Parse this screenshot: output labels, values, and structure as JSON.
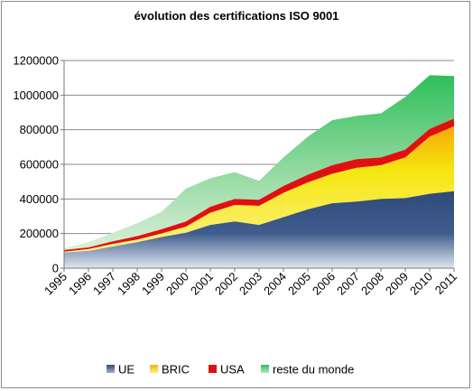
{
  "chart_data": {
    "type": "area",
    "title": "évolution des certifications ISO 9001",
    "xlabel": "",
    "ylabel": "",
    "ylim": [
      0,
      1200000
    ],
    "yticks": [
      0,
      200000,
      400000,
      600000,
      800000,
      1000000,
      1200000
    ],
    "ytick_labels": [
      "0",
      "200000",
      "400000",
      "600000",
      "800000",
      "1000000",
      "1200000"
    ],
    "grid": true,
    "legend_position": "bottom",
    "categories": [
      "1995",
      "1996",
      "1997",
      "1998",
      "1999",
      "2000",
      "2001",
      "2002",
      "2003",
      "2004",
      "2005",
      "2006",
      "2007",
      "2008",
      "2009",
      "2010",
      "2011"
    ],
    "stacked": true,
    "series": [
      {
        "name": "UE",
        "color": "#2f4f7f",
        "values": [
          90000,
          100000,
          125000,
          150000,
          180000,
          205000,
          250000,
          270000,
          250000,
          295000,
          340000,
          375000,
          385000,
          400000,
          405000,
          430000,
          445000
        ]
      },
      {
        "name": "BRIC",
        "color": "#f5e60a",
        "values": [
          5000,
          10000,
          15000,
          15000,
          20000,
          35000,
          70000,
          95000,
          110000,
          140000,
          155000,
          170000,
          195000,
          195000,
          235000,
          330000,
          375000
        ]
      },
      {
        "name": "USA",
        "color": "#e01010",
        "values": [
          10000,
          10000,
          15000,
          20000,
          25000,
          30000,
          35000,
          35000,
          35000,
          40000,
          45000,
          50000,
          50000,
          45000,
          45000,
          45000,
          45000
        ]
      },
      {
        "name": "reste du monde",
        "color": "#3cc070",
        "values": [
          10000,
          30000,
          50000,
          75000,
          100000,
          190000,
          165000,
          155000,
          110000,
          165000,
          220000,
          260000,
          250000,
          255000,
          305000,
          310000,
          245000
        ]
      }
    ]
  }
}
